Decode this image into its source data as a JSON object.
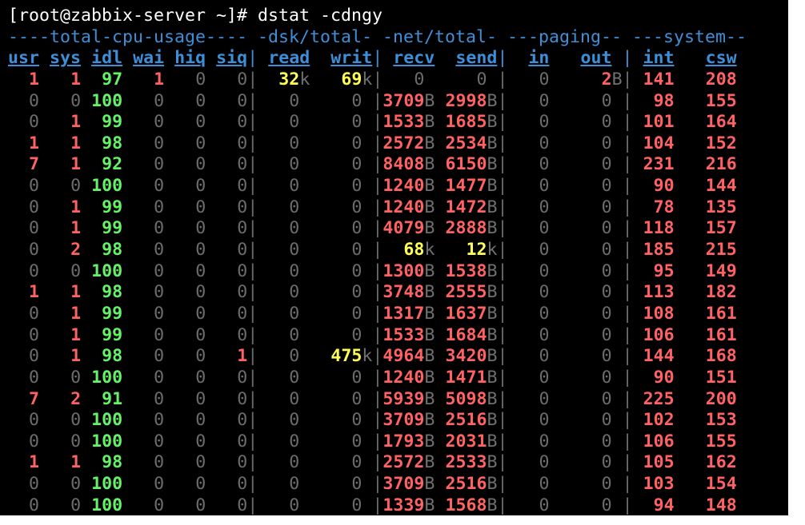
{
  "prompt": "[root@zabbix-server ~]# dstat -cdngy",
  "group_header": "----total-cpu-usage---- -dsk/total- -net/total- ---paging-- ---system--",
  "separator": "|",
  "columns": [
    [
      "usr",
      "sys",
      "idl",
      "wai",
      "hiq",
      "siq"
    ],
    [
      "read",
      "writ"
    ],
    [
      "recv",
      "send"
    ],
    [
      "in",
      "out"
    ],
    [
      "int",
      "csw"
    ]
  ],
  "rows": [
    [
      "1",
      "1",
      "97",
      "1",
      "0",
      "0",
      "32k",
      "69k",
      "0",
      "0",
      "0",
      "2B",
      "141",
      "208"
    ],
    [
      "0",
      "0",
      "100",
      "0",
      "0",
      "0",
      "0",
      "0",
      "3709B",
      "2998B",
      "0",
      "0",
      "98",
      "155"
    ],
    [
      "0",
      "1",
      "99",
      "0",
      "0",
      "0",
      "0",
      "0",
      "1533B",
      "1685B",
      "0",
      "0",
      "101",
      "164"
    ],
    [
      "1",
      "1",
      "98",
      "0",
      "0",
      "0",
      "0",
      "0",
      "2572B",
      "2534B",
      "0",
      "0",
      "104",
      "152"
    ],
    [
      "7",
      "1",
      "92",
      "0",
      "0",
      "0",
      "0",
      "0",
      "8408B",
      "6150B",
      "0",
      "0",
      "231",
      "216"
    ],
    [
      "0",
      "0",
      "100",
      "0",
      "0",
      "0",
      "0",
      "0",
      "1240B",
      "1477B",
      "0",
      "0",
      "90",
      "144"
    ],
    [
      "0",
      "1",
      "99",
      "0",
      "0",
      "0",
      "0",
      "0",
      "1240B",
      "1472B",
      "0",
      "0",
      "78",
      "135"
    ],
    [
      "0",
      "1",
      "99",
      "0",
      "0",
      "0",
      "0",
      "0",
      "4079B",
      "2888B",
      "0",
      "0",
      "118",
      "157"
    ],
    [
      "0",
      "2",
      "98",
      "0",
      "0",
      "0",
      "0",
      "0",
      "68k",
      "12k",
      "0",
      "0",
      "185",
      "215"
    ],
    [
      "0",
      "0",
      "100",
      "0",
      "0",
      "0",
      "0",
      "0",
      "1300B",
      "1538B",
      "0",
      "0",
      "95",
      "149"
    ],
    [
      "1",
      "1",
      "98",
      "0",
      "0",
      "0",
      "0",
      "0",
      "3748B",
      "2555B",
      "0",
      "0",
      "113",
      "182"
    ],
    [
      "0",
      "1",
      "99",
      "0",
      "0",
      "0",
      "0",
      "0",
      "1317B",
      "1637B",
      "0",
      "0",
      "108",
      "161"
    ],
    [
      "0",
      "1",
      "99",
      "0",
      "0",
      "0",
      "0",
      "0",
      "1533B",
      "1684B",
      "0",
      "0",
      "106",
      "161"
    ],
    [
      "0",
      "1",
      "98",
      "0",
      "0",
      "1",
      "0",
      "475k",
      "4964B",
      "3420B",
      "0",
      "0",
      "144",
      "168"
    ],
    [
      "0",
      "0",
      "100",
      "0",
      "0",
      "0",
      "0",
      "0",
      "1240B",
      "1471B",
      "0",
      "0",
      "90",
      "151"
    ],
    [
      "7",
      "2",
      "91",
      "0",
      "0",
      "0",
      "0",
      "0",
      "5939B",
      "5098B",
      "0",
      "0",
      "225",
      "200"
    ],
    [
      "0",
      "0",
      "100",
      "0",
      "0",
      "0",
      "0",
      "0",
      "3709B",
      "2516B",
      "0",
      "0",
      "102",
      "153"
    ],
    [
      "0",
      "0",
      "100",
      "0",
      "0",
      "0",
      "0",
      "0",
      "1793B",
      "2031B",
      "0",
      "0",
      "106",
      "155"
    ],
    [
      "1",
      "1",
      "98",
      "0",
      "0",
      "0",
      "0",
      "0",
      "2572B",
      "2533B",
      "0",
      "0",
      "105",
      "162"
    ],
    [
      "0",
      "0",
      "100",
      "0",
      "0",
      "0",
      "0",
      "0",
      "3709B",
      "2516B",
      "0",
      "0",
      "103",
      "154"
    ],
    [
      "0",
      "0",
      "100",
      "0",
      "0",
      "0",
      "0",
      "0",
      "1339B",
      "1568B",
      "0",
      "0",
      "94",
      "148"
    ]
  ]
}
